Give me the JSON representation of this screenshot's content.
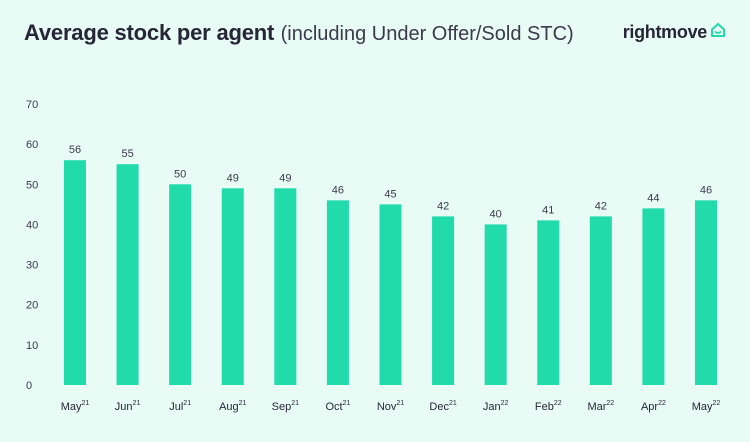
{
  "header": {
    "title_main": "Average stock per agent",
    "title_sub": "(including Under Offer/Sold STC)",
    "brand": "rightmove",
    "brand_icon": "house-icon"
  },
  "colors": {
    "background": "#e8fbf5",
    "bar": "#21dbaa",
    "text": "#262637",
    "axis_text": "#3a3a4a",
    "brand_icon": "#21dbaa"
  },
  "chart_data": {
    "type": "bar",
    "title": "Average stock per agent",
    "subtitle": "(including Under Offer/Sold STC)",
    "categories": [
      {
        "label": "May",
        "sup": "21"
      },
      {
        "label": "Jun",
        "sup": "21"
      },
      {
        "label": "Jul",
        "sup": "21"
      },
      {
        "label": "Aug",
        "sup": "21"
      },
      {
        "label": "Sep",
        "sup": "21"
      },
      {
        "label": "Oct",
        "sup": "21"
      },
      {
        "label": "Nov",
        "sup": "21"
      },
      {
        "label": "Dec",
        "sup": "21"
      },
      {
        "label": "Jan",
        "sup": "22"
      },
      {
        "label": "Feb",
        "sup": "22"
      },
      {
        "label": "Mar",
        "sup": "22"
      },
      {
        "label": "Apr",
        "sup": "22"
      },
      {
        "label": "May",
        "sup": "22"
      }
    ],
    "values": [
      56,
      55,
      50,
      49,
      49,
      46,
      45,
      42,
      40,
      41,
      42,
      44,
      46
    ],
    "ylim": [
      0,
      70
    ],
    "yticks": [
      0,
      10,
      20,
      30,
      40,
      50,
      60,
      70
    ],
    "xlabel": "",
    "ylabel": "",
    "grid": false,
    "legend": "none",
    "data_labels": true
  }
}
